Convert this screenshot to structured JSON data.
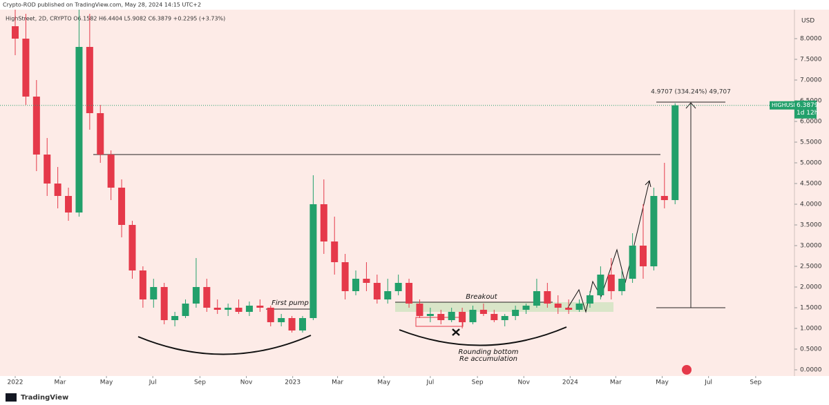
{
  "chart_data": {
    "type": "candlestick",
    "header": "Crypto-ROD published on TradingView.com, May 28, 2024 14:15 UTC+2",
    "legend": "HighStreet, 2D, CRYPTO  O6.1582 H6.4404 L5.9082 C6.3879 +0.2295 (+3.73%)",
    "currency": "USD",
    "symbol": "HIGHUSD",
    "last_price": 6.3879,
    "countdown": "1d 12h",
    "measure_label": "4.9707 (334.24%) 49,707",
    "annotations": [
      "First pump",
      "Breakout",
      "Rounding bottom",
      "Re accumulation"
    ],
    "brand": "TradingView",
    "up_color": "#22a06b",
    "down_color": "#e5394a",
    "x": [
      0,
      14,
      28,
      42,
      56,
      70,
      84,
      98,
      112,
      126,
      140,
      154,
      168,
      182,
      196,
      210,
      224,
      238,
      252,
      266,
      280,
      294,
      308,
      322,
      336,
      350,
      364,
      378,
      392,
      406,
      420,
      434,
      448,
      462,
      476,
      490,
      504,
      518,
      532,
      546,
      560,
      574,
      588,
      602,
      616,
      630,
      644,
      658,
      672,
      686,
      700,
      714,
      728,
      742,
      756,
      770,
      784,
      798,
      812,
      826,
      840,
      854,
      868
    ],
    "open": [
      8.3,
      8.0,
      6.6,
      5.2,
      4.5,
      4.2,
      3.8,
      7.8,
      6.2,
      5.2,
      4.4,
      3.5,
      2.4,
      1.7,
      2.0,
      1.2,
      1.3,
      1.6,
      2.0,
      1.5,
      1.45,
      1.5,
      1.4,
      1.55,
      1.5,
      1.15,
      1.25,
      0.95,
      1.25,
      4.0,
      3.1,
      2.6,
      1.9,
      2.2,
      2.1,
      1.7,
      1.9,
      2.1,
      1.6,
      1.3,
      1.35,
      1.2,
      1.4,
      1.15,
      1.45,
      1.35,
      1.2,
      1.3,
      1.45,
      1.55,
      1.9,
      1.6,
      1.5,
      1.45,
      1.6,
      1.8,
      2.3,
      1.9,
      2.2,
      3.0,
      2.5,
      4.2,
      4.1
    ],
    "high": [
      9.2,
      8.6,
      7.0,
      5.6,
      4.9,
      4.4,
      9.2,
      8.6,
      6.4,
      5.3,
      4.6,
      3.6,
      2.5,
      2.2,
      2.1,
      1.4,
      1.7,
      2.7,
      2.2,
      1.7,
      1.6,
      1.7,
      1.65,
      1.7,
      1.55,
      1.35,
      1.3,
      1.3,
      4.7,
      4.6,
      3.7,
      2.8,
      2.4,
      2.6,
      2.3,
      2.2,
      2.3,
      2.2,
      1.7,
      1.5,
      1.45,
      1.5,
      1.5,
      1.55,
      1.6,
      1.45,
      1.35,
      1.55,
      1.6,
      2.2,
      2.1,
      1.8,
      1.7,
      1.7,
      1.9,
      2.5,
      2.7,
      2.4,
      3.3,
      4.0,
      4.4,
      5.0,
      6.4404
    ],
    "low": [
      7.6,
      6.4,
      4.8,
      4.2,
      3.9,
      3.6,
      3.7,
      5.8,
      5.0,
      4.1,
      3.2,
      2.2,
      1.5,
      1.5,
      1.1,
      1.05,
      1.25,
      1.5,
      1.4,
      1.35,
      1.3,
      1.35,
      1.3,
      1.4,
      1.05,
      1.05,
      0.9,
      0.9,
      1.2,
      2.8,
      2.3,
      1.7,
      1.8,
      1.9,
      1.6,
      1.6,
      1.8,
      1.5,
      1.25,
      1.15,
      1.1,
      1.15,
      1.0,
      1.1,
      1.3,
      1.15,
      1.05,
      1.2,
      1.35,
      1.5,
      1.5,
      1.35,
      1.35,
      1.4,
      1.5,
      1.7,
      1.7,
      1.8,
      2.1,
      2.2,
      2.4,
      3.9,
      4.0
    ],
    "close": [
      8.0,
      6.6,
      5.2,
      4.5,
      4.2,
      3.8,
      7.8,
      6.2,
      5.2,
      4.4,
      3.5,
      2.4,
      1.7,
      2.0,
      1.2,
      1.3,
      1.6,
      2.0,
      1.5,
      1.45,
      1.5,
      1.4,
      1.55,
      1.5,
      1.15,
      1.25,
      0.95,
      1.25,
      4.0,
      3.1,
      2.6,
      1.9,
      2.2,
      2.1,
      1.7,
      1.9,
      2.1,
      1.6,
      1.3,
      1.35,
      1.2,
      1.4,
      1.15,
      1.45,
      1.35,
      1.2,
      1.3,
      1.45,
      1.55,
      1.9,
      1.6,
      1.5,
      1.45,
      1.6,
      1.8,
      2.3,
      1.9,
      2.2,
      3.0,
      2.5,
      4.2,
      4.1,
      6.3879
    ],
    "xlim": [
      -20,
      1025
    ],
    "xticks": [
      {
        "value": 0,
        "label": "2022"
      },
      {
        "value": 59,
        "label": "Mar"
      },
      {
        "value": 120,
        "label": "May"
      },
      {
        "value": 181,
        "label": "Jul"
      },
      {
        "value": 243,
        "label": "Sep"
      },
      {
        "value": 304,
        "label": "Nov"
      },
      {
        "value": 365,
        "label": "2023"
      },
      {
        "value": 424,
        "label": "Mar"
      },
      {
        "value": 485,
        "label": "May"
      },
      {
        "value": 546,
        "label": "Jul"
      },
      {
        "value": 608,
        "label": "Sep"
      },
      {
        "value": 669,
        "label": "Nov"
      },
      {
        "value": 730,
        "label": "2024"
      },
      {
        "value": 790,
        "label": "Mar"
      },
      {
        "value": 851,
        "label": "May"
      },
      {
        "value": 912,
        "label": "Jul"
      },
      {
        "value": 974,
        "label": "Sep"
      }
    ],
    "ylim": [
      -0.15,
      8.6
    ],
    "yticks": [
      {
        "value": 0,
        "label": "0.0000"
      },
      {
        "value": 0.5,
        "label": "0.5000"
      },
      {
        "value": 1,
        "label": "1.0000"
      },
      {
        "value": 1.5,
        "label": "1.5000"
      },
      {
        "value": 2,
        "label": "2.0000"
      },
      {
        "value": 2.5,
        "label": "2.5000"
      },
      {
        "value": 3,
        "label": "3.0000"
      },
      {
        "value": 3.5,
        "label": "3.5000"
      },
      {
        "value": 4,
        "label": "4.0000"
      },
      {
        "value": 4.5,
        "label": "4.5000"
      },
      {
        "value": 5,
        "label": "5.0000"
      },
      {
        "value": 5.5,
        "label": "5.5000"
      },
      {
        "value": 6,
        "label": "6.0000"
      },
      {
        "value": 6.5,
        "label": "6.5000"
      },
      {
        "value": 7,
        "label": "7.0000"
      },
      {
        "value": 7.5,
        "label": "7.5000"
      },
      {
        "value": 8,
        "label": "8.0000"
      }
    ],
    "grid": false
  }
}
